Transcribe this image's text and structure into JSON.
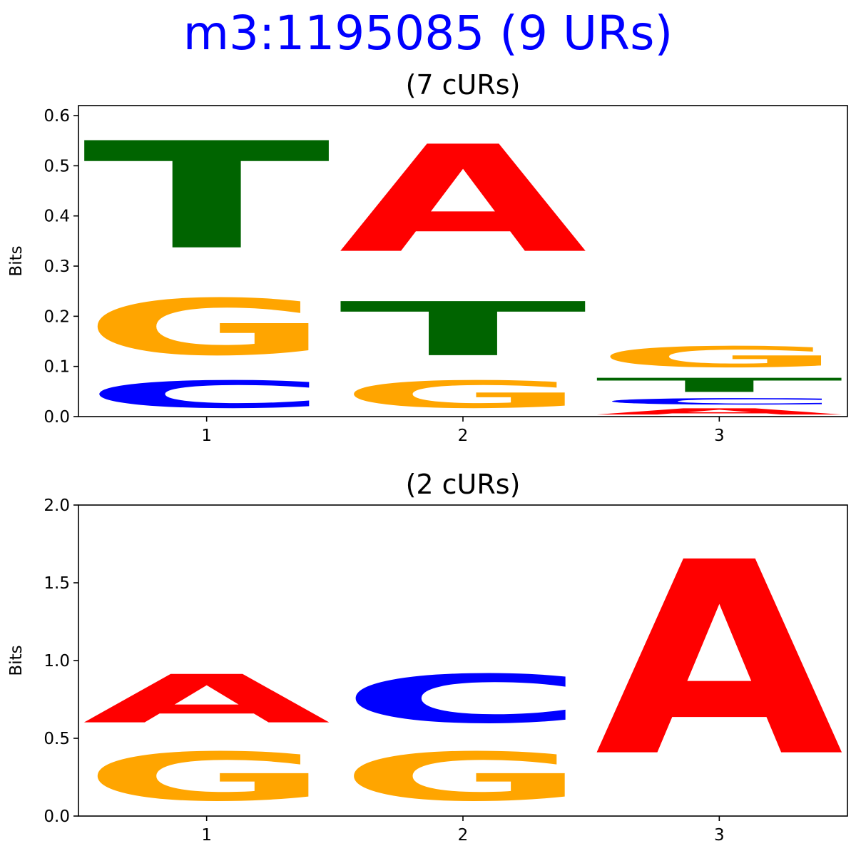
{
  "title": "m3:1195085 (9 URs)",
  "colors": {
    "A": "#ff0000",
    "C": "#0000ff",
    "G": "#ffa500",
    "T": "#006400",
    "title": "#0000ff"
  },
  "chart_data": [
    {
      "type": "sequence-logo",
      "title": "(7 cURs)",
      "ylabel": "Bits",
      "ylim": [
        0,
        0.62
      ],
      "yticks": [
        "0.0",
        "0.1",
        "0.2",
        "0.3",
        "0.4",
        "0.5",
        "0.6"
      ],
      "ytick_values": [
        0,
        0.1,
        0.2,
        0.3,
        0.4,
        0.5,
        0.6
      ],
      "xticks": [
        "1",
        "2",
        "3"
      ],
      "positions": [
        {
          "x": "1",
          "stack": [
            {
              "letter": "C",
              "bits": 0.087
            },
            {
              "letter": "G",
              "bits": 0.18
            },
            {
              "letter": "T",
              "bits": 0.343
            }
          ]
        },
        {
          "x": "2",
          "stack": [
            {
              "letter": "G",
              "bits": 0.087
            },
            {
              "letter": "T",
              "bits": 0.173
            },
            {
              "letter": "A",
              "bits": 0.343
            }
          ]
        },
        {
          "x": "3",
          "stack": [
            {
              "letter": "A",
              "bits": 0.02
            },
            {
              "letter": "C",
              "bits": 0.02
            },
            {
              "letter": "T",
              "bits": 0.045
            },
            {
              "letter": "G",
              "bits": 0.067
            }
          ]
        }
      ]
    },
    {
      "type": "sequence-logo",
      "title": "(2 cURs)",
      "ylabel": "Bits",
      "ylim": [
        0,
        2.0
      ],
      "yticks": [
        "0.0",
        "0.5",
        "1.0",
        "1.5",
        "2.0"
      ],
      "ytick_values": [
        0,
        0.5,
        1.0,
        1.5,
        2.0
      ],
      "xticks": [
        "1",
        "2",
        "3"
      ],
      "positions": [
        {
          "x": "1",
          "stack": [
            {
              "letter": "G",
              "bits": 0.5
            },
            {
              "letter": "A",
              "bits": 0.5
            }
          ]
        },
        {
          "x": "2",
          "stack": [
            {
              "letter": "G",
              "bits": 0.5
            },
            {
              "letter": "C",
              "bits": 0.5
            }
          ]
        },
        {
          "x": "3",
          "stack": [
            {
              "letter": "A",
              "bits": 2.0
            }
          ]
        }
      ]
    }
  ]
}
